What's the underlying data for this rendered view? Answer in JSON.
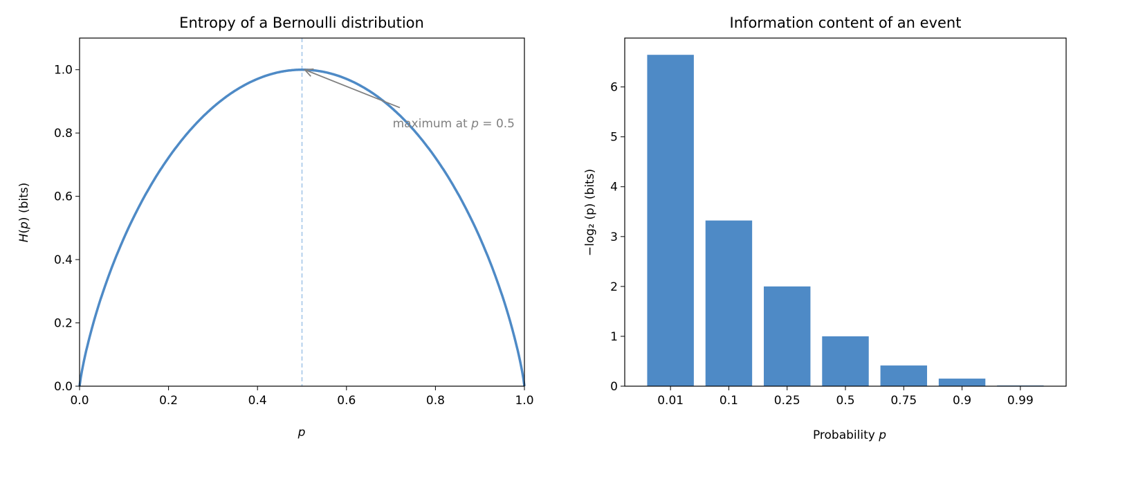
{
  "colors": {
    "line": "#4e8ac6",
    "vline": "#9fc3e7",
    "bar": "#4e8ac6",
    "annotation": "#808080"
  },
  "chart_data": [
    {
      "type": "line",
      "title": "Entropy of a Bernoulli distribution",
      "xlabel": "p",
      "ylabel_main": "H",
      "ylabel_arg": "p",
      "ylabel_unit": "(bits)",
      "function": "H(p) = -p log2 p - (1-p) log2 (1-p)",
      "xlim": [
        0,
        1
      ],
      "ylim": [
        0,
        1.1
      ],
      "xticks": [
        "0.0",
        "0.2",
        "0.4",
        "0.6",
        "0.8",
        "1.0"
      ],
      "yticks": [
        "0.0",
        "0.2",
        "0.4",
        "0.6",
        "0.8",
        "1.0"
      ],
      "vline_x": 0.5,
      "annotation": {
        "text_prefix": "maximum at ",
        "text_var": "p",
        "text_suffix": " = 0.5",
        "xy": [
          0.5,
          1.0
        ],
        "xytext": [
          0.72,
          0.88
        ]
      },
      "grid": false
    },
    {
      "type": "bar",
      "title": "Information content of an event",
      "xlabel_prefix": "Probability ",
      "xlabel_var": "p",
      "ylabel": "−log₂ (p) (bits)",
      "categories": [
        "0.01",
        "0.1",
        "0.25",
        "0.5",
        "0.75",
        "0.9",
        "0.99"
      ],
      "values": [
        6.644,
        3.322,
        2.0,
        1.0,
        0.415,
        0.152,
        0.0145
      ],
      "ylim": [
        0,
        6.98
      ],
      "yticks": [
        "0",
        "1",
        "2",
        "3",
        "4",
        "5",
        "6"
      ],
      "grid": false
    }
  ]
}
